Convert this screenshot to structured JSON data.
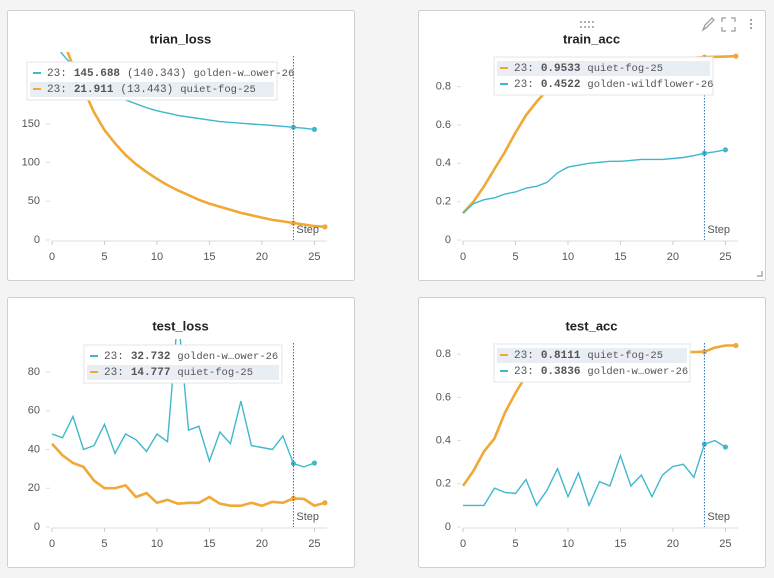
{
  "chart_data": [
    {
      "type": "line",
      "title": "trian_loss",
      "xlim": [
        0,
        26.2
      ],
      "ylim": [
        0,
        243
      ],
      "xticks": [
        0,
        5,
        10,
        15,
        20,
        25
      ],
      "yticks": [
        0,
        50,
        100,
        150
      ],
      "cursor_x": 23,
      "cursor_label": "23:",
      "x_label": "Step",
      "series": [
        {
          "name": "golden-w…ower-26",
          "color": "#3fb8cc",
          "text_color": "#1b9db3",
          "tooltip_value": 145.688,
          "tooltip_extra": "(140.343)",
          "highlighted": false,
          "x": [
            0,
            1,
            2,
            3,
            4,
            5,
            6,
            7,
            8,
            9,
            10,
            11,
            12,
            13,
            14,
            15,
            16,
            17,
            18,
            19,
            20,
            21,
            22,
            23,
            24,
            25
          ],
          "values": [
            260,
            240,
            225,
            212,
            202,
            194,
            187,
            181,
            176,
            171,
            167,
            164,
            161,
            159,
            157,
            155,
            153,
            152,
            151,
            150,
            149,
            148,
            147,
            145.688,
            144.5,
            143
          ]
        },
        {
          "name": "quiet-fog-25",
          "color": "#f0a837",
          "text_color": "#e0891b",
          "tooltip_value": 21.911,
          "tooltip_extra": "(13.443)",
          "highlighted": true,
          "x": [
            0,
            1,
            2,
            3,
            4,
            5,
            6,
            7,
            8,
            9,
            10,
            11,
            12,
            13,
            14,
            15,
            16,
            17,
            18,
            19,
            20,
            21,
            22,
            23,
            24,
            25,
            26
          ],
          "values": [
            300,
            260,
            225,
            195,
            165,
            142,
            125,
            110,
            98,
            88,
            79,
            71,
            64,
            58,
            52,
            47,
            43,
            39,
            35,
            32,
            29,
            26,
            24,
            21.911,
            20,
            18,
            17
          ]
        }
      ]
    },
    {
      "type": "line",
      "title": "train_acc",
      "xlim": [
        0,
        26.2
      ],
      "ylim": [
        0,
        0.98
      ],
      "xticks": [
        0,
        5,
        10,
        15,
        20,
        25
      ],
      "yticks": [
        0,
        0.2,
        0.4,
        0.6,
        0.8
      ],
      "cursor_x": 23,
      "cursor_label": "23:",
      "x_label": "Step",
      "series": [
        {
          "name": "quiet-fog-25",
          "color": "#f0a837",
          "text_color": "#e0891b",
          "tooltip_value": 0.9533,
          "highlighted": true,
          "x": [
            0,
            1,
            2,
            3,
            4,
            5,
            6,
            7,
            8,
            9,
            10,
            11,
            12,
            13,
            14,
            15,
            16,
            17,
            18,
            19,
            20,
            21,
            22,
            23,
            24,
            25,
            26
          ],
          "values": [
            0.14,
            0.2,
            0.28,
            0.37,
            0.46,
            0.56,
            0.65,
            0.72,
            0.78,
            0.82,
            0.85,
            0.87,
            0.89,
            0.9,
            0.91,
            0.92,
            0.925,
            0.93,
            0.935,
            0.94,
            0.943,
            0.946,
            0.95,
            0.9533,
            0.955,
            0.956,
            0.958
          ]
        },
        {
          "name": "golden-wildflower-26",
          "color": "#3fb8cc",
          "text_color": "#1b9db3",
          "tooltip_value": 0.4522,
          "highlighted": false,
          "x": [
            0,
            1,
            2,
            3,
            4,
            5,
            6,
            7,
            8,
            9,
            10,
            11,
            12,
            13,
            14,
            15,
            16,
            17,
            18,
            19,
            20,
            21,
            22,
            23,
            24,
            25
          ],
          "values": [
            0.14,
            0.19,
            0.21,
            0.22,
            0.24,
            0.25,
            0.27,
            0.28,
            0.3,
            0.35,
            0.38,
            0.39,
            0.4,
            0.405,
            0.41,
            0.41,
            0.415,
            0.42,
            0.42,
            0.42,
            0.425,
            0.43,
            0.44,
            0.4522,
            0.46,
            0.47
          ]
        }
      ]
    },
    {
      "type": "line",
      "title": "test_loss",
      "xlim": [
        0,
        26.2
      ],
      "ylim": [
        0,
        97
      ],
      "xticks": [
        0,
        5,
        10,
        15,
        20,
        25
      ],
      "yticks": [
        0,
        20,
        40,
        60,
        80
      ],
      "cursor_x": 23,
      "cursor_label": "23:",
      "x_label": "Step",
      "series": [
        {
          "name": "golden-w…ower-26",
          "color": "#3fb8cc",
          "text_color": "#1b9db3",
          "tooltip_value": 32.732,
          "highlighted": false,
          "x": [
            0,
            1,
            2,
            3,
            4,
            5,
            6,
            7,
            8,
            9,
            10,
            11,
            12,
            13,
            14,
            15,
            16,
            17,
            18,
            19,
            20,
            21,
            22,
            23,
            24,
            25
          ],
          "values": [
            48,
            46,
            57,
            40,
            42,
            53,
            38,
            48,
            45,
            39,
            48,
            44,
            110,
            50,
            52,
            34,
            49,
            43,
            65,
            42,
            41,
            40,
            47,
            32.732,
            31,
            33
          ]
        },
        {
          "name": "quiet-fog-25",
          "color": "#f0a837",
          "text_color": "#e0891b",
          "tooltip_value": 14.777,
          "highlighted": true,
          "x": [
            0,
            1,
            2,
            3,
            4,
            5,
            6,
            7,
            8,
            9,
            10,
            11,
            12,
            13,
            14,
            15,
            16,
            17,
            18,
            19,
            20,
            21,
            22,
            23,
            24,
            25,
            26
          ],
          "values": [
            43,
            37,
            33,
            31,
            24,
            20,
            20,
            21.5,
            15.5,
            17.5,
            12.5,
            14,
            12,
            12.5,
            12.5,
            15.5,
            12,
            11,
            11,
            12.5,
            11,
            13,
            12.5,
            14.777,
            14.5,
            11,
            12.5
          ]
        }
      ]
    },
    {
      "type": "line",
      "title": "test_acc",
      "xlim": [
        0,
        26.2
      ],
      "ylim": [
        0,
        0.87
      ],
      "xticks": [
        0,
        5,
        10,
        15,
        20,
        25
      ],
      "yticks": [
        0,
        0.2,
        0.4,
        0.6,
        0.8
      ],
      "cursor_x": 23,
      "cursor_label": "23:",
      "x_label": "Step",
      "series": [
        {
          "name": "quiet-fog-25",
          "color": "#f0a837",
          "text_color": "#e0891b",
          "tooltip_value": 0.8111,
          "highlighted": true,
          "x": [
            0,
            1,
            2,
            3,
            4,
            5,
            6,
            7,
            8,
            9,
            10,
            11,
            12,
            13,
            14,
            15,
            16,
            17,
            18,
            19,
            20,
            21,
            22,
            23,
            24,
            25,
            26
          ],
          "values": [
            0.19,
            0.26,
            0.35,
            0.41,
            0.53,
            0.62,
            0.7,
            0.73,
            0.75,
            0.76,
            0.77,
            0.78,
            0.78,
            0.79,
            0.79,
            0.79,
            0.8,
            0.8,
            0.8,
            0.8,
            0.805,
            0.81,
            0.81,
            0.8111,
            0.83,
            0.84,
            0.84
          ]
        },
        {
          "name": "golden-w…ower-26",
          "color": "#3fb8cc",
          "text_color": "#1b9db3",
          "tooltip_value": 0.3836,
          "highlighted": false,
          "x": [
            0,
            1,
            2,
            3,
            4,
            5,
            6,
            7,
            8,
            9,
            10,
            11,
            12,
            13,
            14,
            15,
            16,
            17,
            18,
            19,
            20,
            21,
            22,
            23,
            24,
            25
          ],
          "values": [
            0.1,
            0.1,
            0.1,
            0.18,
            0.16,
            0.155,
            0.22,
            0.1,
            0.17,
            0.27,
            0.14,
            0.25,
            0.1,
            0.21,
            0.19,
            0.33,
            0.19,
            0.24,
            0.14,
            0.24,
            0.28,
            0.29,
            0.23,
            0.3836,
            0.4,
            0.37
          ]
        }
      ]
    }
  ]
}
